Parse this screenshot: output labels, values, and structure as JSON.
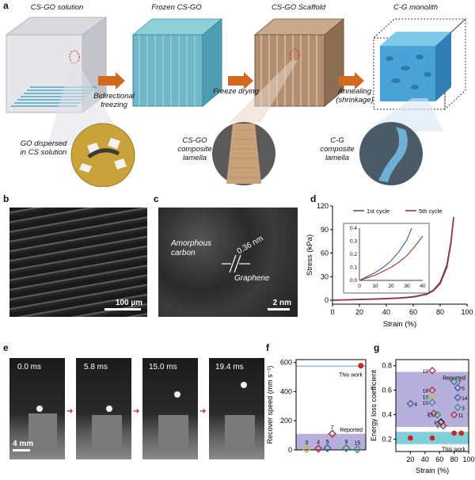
{
  "panel_a": {
    "letter": "a",
    "stages": [
      "CS-GO solution",
      "Frozen CS-GO",
      "CS-GO Scaffold",
      "C-G monolith"
    ],
    "arrows": [
      "Bidirectional freezing",
      "Freeze drying",
      "Annealing (shrinkage)"
    ],
    "insets": [
      "GO dispersed in CS solution",
      "CS-GO composite lamella",
      "C-G composite lamella"
    ]
  },
  "panel_b": {
    "letter": "b",
    "scale_bar": "100 µm"
  },
  "panel_c": {
    "letter": "c",
    "labels": [
      "Amorphous carbon",
      "0.36 nm",
      "Graphene"
    ],
    "scale_bar": "2 nm"
  },
  "panel_e": {
    "letter": "e",
    "frames": [
      "0.0 ms",
      "5.8 ms",
      "15.0 ms",
      "19.4 ms"
    ],
    "scale_bar": "4 mm"
  },
  "chart_data": [
    {
      "panel": "d",
      "type": "line",
      "xlabel": "Strain (%)",
      "ylabel": "Stress (kPa)",
      "xlim": [
        0,
        100
      ],
      "ylim": [
        -5,
        120
      ],
      "xticks": [
        0,
        20,
        40,
        60,
        80,
        100
      ],
      "yticks": [
        0,
        30,
        60,
        90,
        120
      ],
      "legend": "top-right",
      "series": [
        {
          "name": "1st cycle",
          "color": "#3b5ba5",
          "x": [
            0,
            10,
            20,
            30,
            40,
            50,
            60,
            70,
            75,
            80,
            85,
            88,
            90
          ],
          "y": [
            0,
            0.6,
            1.1,
            1.6,
            2.2,
            3.0,
            4.5,
            8,
            13,
            23,
            45,
            75,
            106
          ]
        },
        {
          "name": "5th cycle",
          "color": "#a8323a",
          "x": [
            0,
            10,
            20,
            30,
            40,
            50,
            60,
            70,
            75,
            80,
            85,
            88,
            90
          ],
          "y": [
            0,
            0.4,
            0.8,
            1.2,
            1.8,
            2.6,
            4.0,
            7.5,
            12,
            21,
            42,
            72,
            105
          ]
        }
      ],
      "inset": {
        "xlim": [
          0,
          40
        ],
        "ylim": [
          0,
          0.4
        ],
        "xticks": [
          0,
          10,
          20,
          30,
          40
        ],
        "yticks": [
          0.0,
          0.1,
          0.2,
          0.3,
          0.4
        ],
        "series": [
          {
            "name": "1st cycle",
            "color": "#3b5ba5",
            "x": [
              0,
              5,
              10,
              15,
              20,
              25,
              30,
              33
            ],
            "y": [
              0,
              0.03,
              0.06,
              0.1,
              0.15,
              0.22,
              0.31,
              0.4
            ]
          },
          {
            "name": "5th cycle",
            "color": "#a8323a",
            "x": [
              0,
              5,
              10,
              15,
              20,
              25,
              30,
              35,
              40
            ],
            "y": [
              0,
              0.02,
              0.04,
              0.07,
              0.1,
              0.14,
              0.19,
              0.26,
              0.34
            ]
          }
        ]
      }
    },
    {
      "panel": "f",
      "type": "scatter",
      "xlabel": "",
      "ylabel": "Recover speed (mm s⁻¹)",
      "xlim": [
        0,
        100
      ],
      "ylim": [
        0,
        620
      ],
      "yticks": [
        0,
        200,
        400,
        600
      ],
      "reported_band": [
        0,
        110
      ],
      "this_work_line": 575,
      "annotations": [
        "This work",
        "Reported"
      ],
      "points": [
        {
          "label": "3",
          "x": 15,
          "y": 5,
          "color": "#c9b637"
        },
        {
          "label": "4",
          "x": 32,
          "y": 8,
          "color": "#a8323a"
        },
        {
          "label": "5",
          "x": 45,
          "y": 12,
          "color": "#3b5ba5"
        },
        {
          "label": "7",
          "x": 52,
          "y": 110,
          "color": "#a8323a"
        },
        {
          "label": "9",
          "x": 72,
          "y": 12,
          "color": "#2f8f5b"
        },
        {
          "label": "15",
          "x": 88,
          "y": 4,
          "color": "#3b8f9a"
        },
        {
          "label": "",
          "x": 93,
          "y": 578,
          "color": "#cc2222",
          "style": "circle"
        }
      ]
    },
    {
      "panel": "g",
      "type": "scatter",
      "xlabel": "Strain (%)",
      "ylabel": "Energy loss coefficient",
      "xlim": [
        0,
        100
      ],
      "ylim": [
        0.1,
        0.85
      ],
      "xticks": [
        20,
        40,
        60,
        80,
        100
      ],
      "yticks": [
        0.2,
        0.4,
        0.6,
        0.8
      ],
      "reported_band": [
        0.3,
        0.75
      ],
      "this_work_band": [
        0.16,
        0.26
      ],
      "annotations": [
        "Reported",
        "This work"
      ],
      "points": [
        {
          "label": "19",
          "x": 50,
          "y": 0.76,
          "color": "#a8323a"
        },
        {
          "label": "7",
          "x": 80,
          "y": 0.67,
          "color": "#2f8f5b"
        },
        {
          "label": "18",
          "x": 50,
          "y": 0.6,
          "color": "#a8323a"
        },
        {
          "label": "5",
          "x": 85,
          "y": 0.62,
          "color": "#3b5ba5"
        },
        {
          "label": "10",
          "x": 50,
          "y": 0.55,
          "color": "#c9b637"
        },
        {
          "label": "14",
          "x": 85,
          "y": 0.54,
          "color": "#3b5ba5"
        },
        {
          "label": "4",
          "x": 20,
          "y": 0.49,
          "color": "#3b5ba5"
        },
        {
          "label": "15",
          "x": 50,
          "y": 0.5,
          "color": "#3b8f9a"
        },
        {
          "label": "3",
          "x": 85,
          "y": 0.46,
          "color": "#3b8f9a"
        },
        {
          "label": "2",
          "x": 52,
          "y": 0.41,
          "color": "#a8323a"
        },
        {
          "label": "17",
          "x": 57,
          "y": 0.4,
          "color": "#2f8f5b"
        },
        {
          "label": "11",
          "x": 80,
          "y": 0.4,
          "color": "#a8323a"
        },
        {
          "label": "8",
          "x": 62,
          "y": 0.34,
          "color": "#111111"
        },
        {
          "label": "6",
          "x": 65,
          "y": 0.31,
          "color": "#a8323a"
        },
        {
          "label": "",
          "x": 20,
          "y": 0.21,
          "color": "#cc2222",
          "style": "circle"
        },
        {
          "label": "",
          "x": 50,
          "y": 0.21,
          "color": "#cc2222",
          "style": "circle"
        },
        {
          "label": "",
          "x": 80,
          "y": 0.25,
          "color": "#cc2222",
          "style": "circle"
        },
        {
          "label": "",
          "x": 90,
          "y": 0.25,
          "color": "#cc2222",
          "style": "circle"
        }
      ]
    }
  ]
}
